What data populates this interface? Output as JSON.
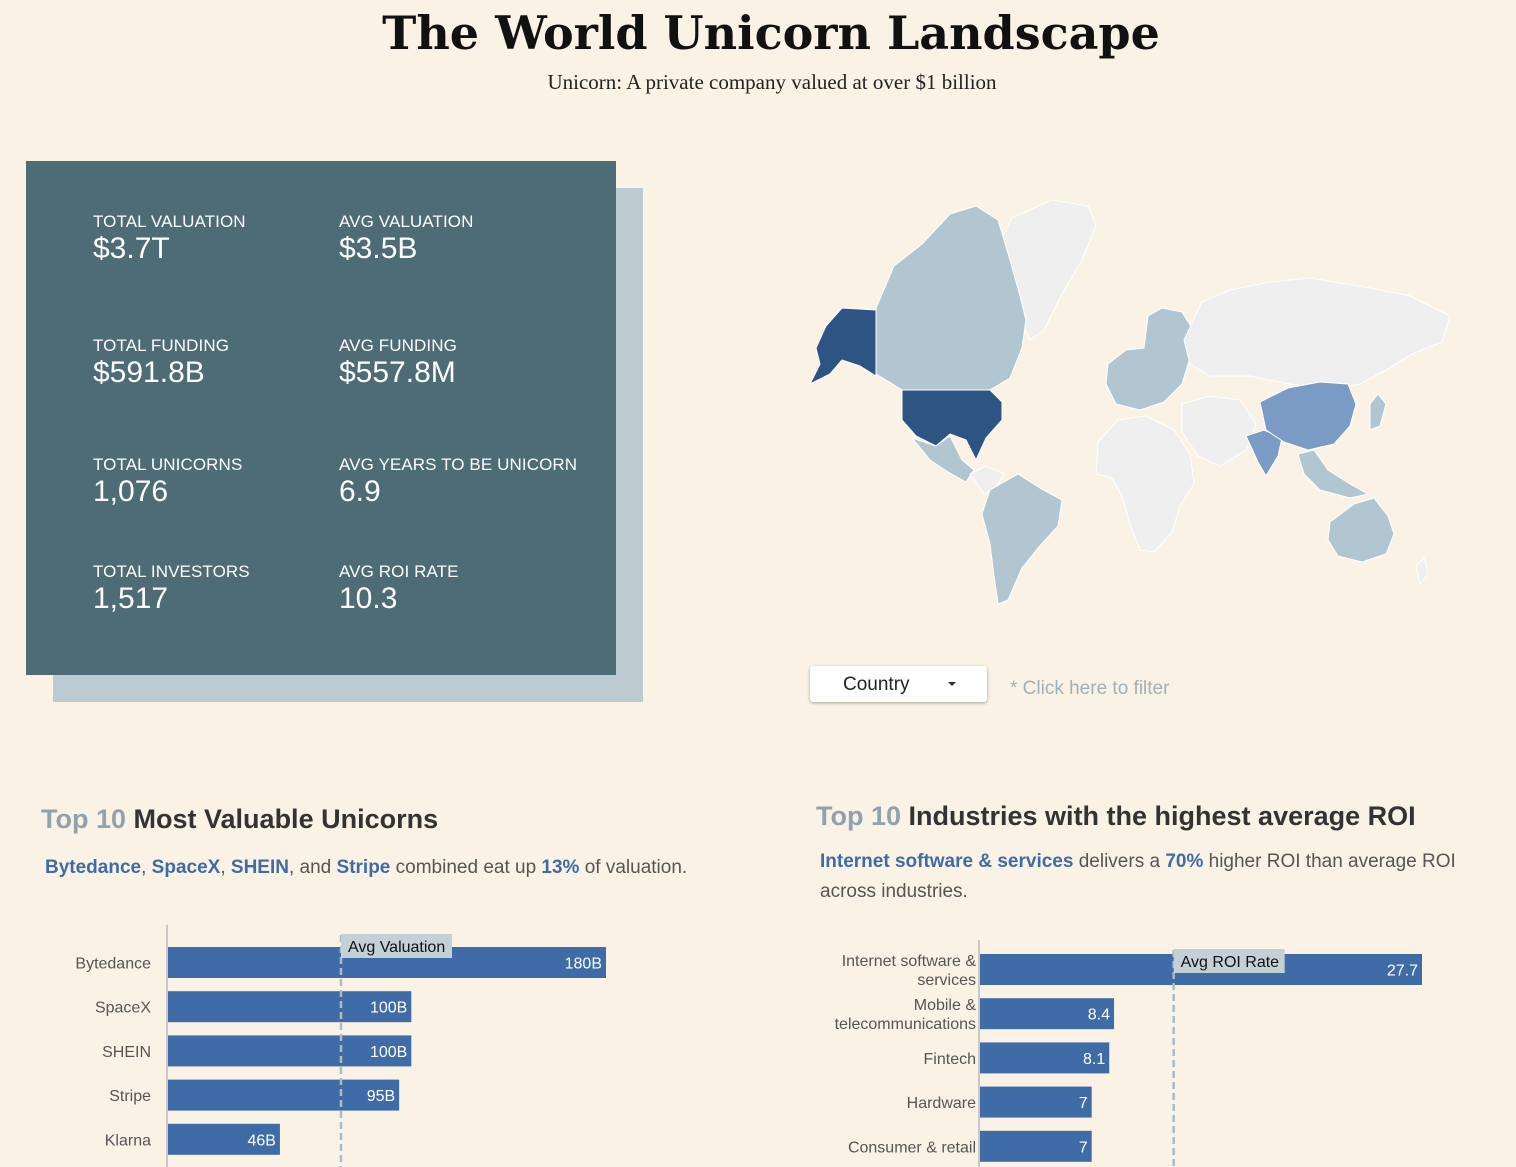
{
  "header": {
    "title": "The World Unicorn Landscape",
    "subtitle": "Unicorn: A private company valued at over $1 billion"
  },
  "kpis": [
    {
      "label": "TOTAL VALUATION",
      "value": "$3.7T"
    },
    {
      "label": "AVG VALUATION",
      "value": "$3.5B"
    },
    {
      "label": "TOTAL FUNDING",
      "value": "$591.8B"
    },
    {
      "label": "AVG FUNDING",
      "value": "$557.8M"
    },
    {
      "label": "TOTAL UNICORNS",
      "value": "1,076"
    },
    {
      "label": "AVG YEARS TO BE UNICORN",
      "value": "6.9"
    },
    {
      "label": "TOTAL INVESTORS",
      "value": "1,517"
    },
    {
      "label": "AVG ROI RATE",
      "value": "10.3"
    }
  ],
  "map": {
    "colors": {
      "high": "#2e5483",
      "mid": "#7a9cc4",
      "low": "#b2c6d2",
      "none": "#efefef"
    }
  },
  "filter": {
    "dropdown_label": "Country",
    "hint": "* Click here to filter"
  },
  "section_valuable": {
    "title_num": "Top 10",
    "title_text": "Most Valuable Unicorns",
    "desc": {
      "c1": "Bytedance",
      "s1": ", ",
      "c2": "SpaceX",
      "s2": ", ",
      "c3": "SHEIN",
      "s3": ", and ",
      "c4": "Stripe",
      "s4": " combined eat up ",
      "pct": "13%",
      "s5": " of valuation."
    }
  },
  "section_roi": {
    "title_num": "Top 10",
    "title_text": "Industries with the highest average ROI",
    "desc": {
      "ind": "Internet software & services",
      "s1": " delivers a ",
      "pct": "70%",
      "s2": " higher ROI than average ROI across industries."
    }
  },
  "colors": {
    "accent": "#3f6ca6",
    "kpi_bg": "#4d6c75",
    "kpi_shadow": "#bccbd2",
    "page_bg": "#fbf2e6"
  },
  "chart_data": [
    {
      "type": "bar",
      "orientation": "horizontal",
      "title": "Top 10 Most Valuable Unicorns",
      "categories": [
        "Bytedance",
        "SpaceX",
        "SHEIN",
        "Stripe",
        "Klarna"
      ],
      "values": [
        180,
        100,
        100,
        95,
        46
      ],
      "value_labels": [
        "180B",
        "100B",
        "100B",
        "95B",
        "46B"
      ],
      "unit": "B",
      "xlim": [
        0,
        180
      ],
      "reference_line": {
        "label": "Avg Valuation",
        "value": 71.5
      }
    },
    {
      "type": "bar",
      "orientation": "horizontal",
      "title": "Top 10 Industries with the highest average ROI",
      "categories": [
        [
          "Internet software &",
          "services"
        ],
        [
          "Mobile &",
          "telecommunications"
        ],
        [
          "Fintech"
        ],
        [
          "Hardware"
        ],
        [
          "Consumer & retail"
        ]
      ],
      "values": [
        27.7,
        8.4,
        8.1,
        7,
        7
      ],
      "value_labels": [
        "27.7",
        "8.4",
        "8.1",
        "7",
        "7"
      ],
      "xlim": [
        0,
        27.7
      ],
      "reference_line": {
        "label": "Avg ROI Rate",
        "value": 12.2
      }
    }
  ]
}
